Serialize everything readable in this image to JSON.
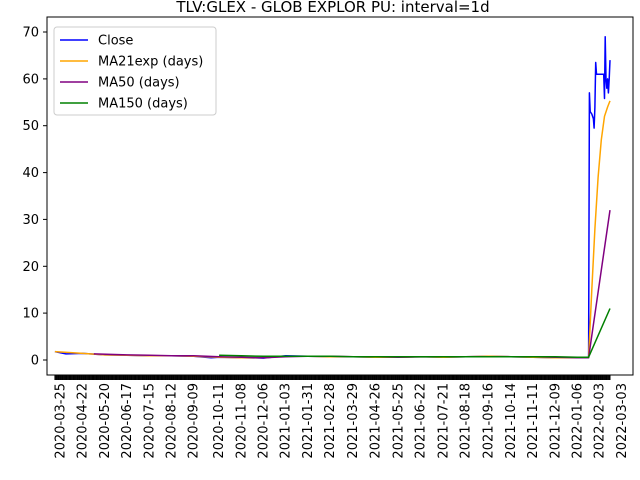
{
  "chart_data": {
    "type": "line",
    "title": "TLV:GLEX - GLOB EXPLOR PU: interval=1d",
    "xlabel": "",
    "ylabel": "",
    "xlim": [
      "2020-03-08",
      "2022-03-17"
    ],
    "ylim": [
      -3.2,
      73.2
    ],
    "yticks": [
      0,
      10,
      20,
      30,
      40,
      50,
      60,
      70
    ],
    "xticks": [
      "2020-03-25",
      "2020-04-22",
      "2020-05-20",
      "2020-06-17",
      "2020-07-15",
      "2020-08-12",
      "2020-09-09",
      "2020-10-11",
      "2020-11-08",
      "2020-12-06",
      "2021-01-03",
      "2021-01-31",
      "2021-02-28",
      "2021-03-29",
      "2021-04-26",
      "2021-05-25",
      "2021-06-22",
      "2021-07-21",
      "2021-08-18",
      "2021-09-16",
      "2021-10-14",
      "2021-11-11",
      "2021-12-09",
      "2022-01-06",
      "2022-02-03",
      "2022-03-03"
    ],
    "grid": false,
    "legend_position": "top-left",
    "series": [
      {
        "name": "Close",
        "color": "#0000ff",
        "points": [
          [
            "2020-03-18",
            1.8
          ],
          [
            "2020-04-01",
            1.3
          ],
          [
            "2020-04-22",
            1.4
          ],
          [
            "2020-05-20",
            1.1
          ],
          [
            "2020-06-17",
            1.0
          ],
          [
            "2020-07-15",
            0.9
          ],
          [
            "2020-08-12",
            0.9
          ],
          [
            "2020-09-09",
            0.8
          ],
          [
            "2020-10-01",
            0.5
          ],
          [
            "2020-10-11",
            0.6
          ],
          [
            "2020-11-08",
            0.5
          ],
          [
            "2020-12-06",
            0.4
          ],
          [
            "2021-01-03",
            0.9
          ],
          [
            "2021-01-31",
            0.8
          ],
          [
            "2021-02-28",
            0.7
          ],
          [
            "2021-03-29",
            0.7
          ],
          [
            "2021-04-26",
            0.6
          ],
          [
            "2021-05-25",
            0.6
          ],
          [
            "2021-06-22",
            0.7
          ],
          [
            "2021-07-21",
            0.6
          ],
          [
            "2021-08-18",
            0.7
          ],
          [
            "2021-09-16",
            0.8
          ],
          [
            "2021-10-14",
            0.7
          ],
          [
            "2021-11-11",
            0.6
          ],
          [
            "2021-12-09",
            0.5
          ],
          [
            "2022-01-06",
            0.5
          ],
          [
            "2022-01-20",
            0.5
          ],
          [
            "2022-01-21",
            57.0
          ],
          [
            "2022-01-22",
            53.0
          ],
          [
            "2022-01-24",
            52.5
          ],
          [
            "2022-01-26",
            51.5
          ],
          [
            "2022-01-27",
            49.5
          ],
          [
            "2022-01-28",
            54.0
          ],
          [
            "2022-01-29",
            63.5
          ],
          [
            "2022-01-30",
            61.0
          ],
          [
            "2022-02-01",
            61.0
          ],
          [
            "2022-02-03",
            61.0
          ],
          [
            "2022-02-06",
            61.0
          ],
          [
            "2022-02-08",
            61.0
          ],
          [
            "2022-02-09",
            55.8
          ],
          [
            "2022-02-10",
            69.0
          ],
          [
            "2022-02-11",
            60.0
          ],
          [
            "2022-02-12",
            58.0
          ],
          [
            "2022-02-13",
            60.0
          ],
          [
            "2022-02-14",
            57.0
          ],
          [
            "2022-02-15",
            60.0
          ],
          [
            "2022-02-16",
            64.0
          ]
        ]
      },
      {
        "name": "MA21exp (days)",
        "color": "#ffa500",
        "points": [
          [
            "2020-03-18",
            1.8
          ],
          [
            "2020-04-22",
            1.4
          ],
          [
            "2020-05-20",
            1.1
          ],
          [
            "2020-06-17",
            1.0
          ],
          [
            "2020-07-15",
            0.9
          ],
          [
            "2020-08-12",
            0.9
          ],
          [
            "2020-09-09",
            0.8
          ],
          [
            "2020-10-11",
            0.6
          ],
          [
            "2020-11-08",
            0.5
          ],
          [
            "2020-12-06",
            0.5
          ],
          [
            "2021-01-03",
            0.8
          ],
          [
            "2021-01-31",
            0.8
          ],
          [
            "2021-02-28",
            0.7
          ],
          [
            "2021-03-29",
            0.7
          ],
          [
            "2021-04-26",
            0.6
          ],
          [
            "2021-05-25",
            0.6
          ],
          [
            "2021-06-22",
            0.7
          ],
          [
            "2021-07-21",
            0.6
          ],
          [
            "2021-08-18",
            0.7
          ],
          [
            "2021-09-16",
            0.8
          ],
          [
            "2021-10-14",
            0.7
          ],
          [
            "2021-11-11",
            0.6
          ],
          [
            "2021-12-09",
            0.5
          ],
          [
            "2022-01-06",
            0.5
          ],
          [
            "2022-01-20",
            0.5
          ],
          [
            "2022-01-24",
            15.0
          ],
          [
            "2022-01-28",
            28.0
          ],
          [
            "2022-02-01",
            39.0
          ],
          [
            "2022-02-05",
            47.0
          ],
          [
            "2022-02-09",
            52.0
          ],
          [
            "2022-02-13",
            54.0
          ],
          [
            "2022-02-16",
            55.3
          ]
        ]
      },
      {
        "name": "MA50 (days)",
        "color": "#800080",
        "points": [
          [
            "2020-05-06",
            1.3
          ],
          [
            "2020-06-17",
            1.1
          ],
          [
            "2020-07-15",
            1.0
          ],
          [
            "2020-08-12",
            0.9
          ],
          [
            "2020-09-09",
            0.9
          ],
          [
            "2020-10-11",
            0.7
          ],
          [
            "2020-11-08",
            0.6
          ],
          [
            "2020-12-06",
            0.5
          ],
          [
            "2021-01-03",
            0.7
          ],
          [
            "2021-01-31",
            0.8
          ],
          [
            "2021-02-28",
            0.8
          ],
          [
            "2021-03-29",
            0.7
          ],
          [
            "2021-04-26",
            0.7
          ],
          [
            "2021-05-25",
            0.6
          ],
          [
            "2021-06-22",
            0.7
          ],
          [
            "2021-07-21",
            0.7
          ],
          [
            "2021-08-18",
            0.7
          ],
          [
            "2021-09-16",
            0.7
          ],
          [
            "2021-10-14",
            0.7
          ],
          [
            "2021-11-11",
            0.7
          ],
          [
            "2021-12-09",
            0.6
          ],
          [
            "2022-01-06",
            0.5
          ],
          [
            "2022-01-20",
            0.5
          ],
          [
            "2022-02-16",
            32.0
          ]
        ]
      },
      {
        "name": "MA150 (days)",
        "color": "#008000",
        "points": [
          [
            "2020-10-11",
            1.0
          ],
          [
            "2020-11-08",
            0.9
          ],
          [
            "2020-12-06",
            0.8
          ],
          [
            "2021-01-03",
            0.8
          ],
          [
            "2021-01-31",
            0.8
          ],
          [
            "2021-02-28",
            0.8
          ],
          [
            "2021-03-29",
            0.7
          ],
          [
            "2021-04-26",
            0.7
          ],
          [
            "2021-05-25",
            0.7
          ],
          [
            "2021-06-22",
            0.7
          ],
          [
            "2021-07-21",
            0.7
          ],
          [
            "2021-08-18",
            0.7
          ],
          [
            "2021-09-16",
            0.7
          ],
          [
            "2021-10-14",
            0.7
          ],
          [
            "2021-11-11",
            0.7
          ],
          [
            "2021-12-09",
            0.7
          ],
          [
            "2022-01-06",
            0.6
          ],
          [
            "2022-01-20",
            0.6
          ],
          [
            "2022-02-16",
            11.0
          ]
        ]
      }
    ]
  }
}
